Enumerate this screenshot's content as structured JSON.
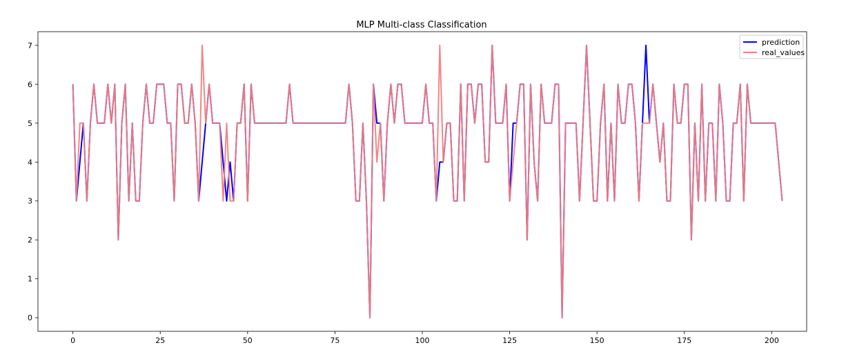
{
  "chart_data": {
    "type": "line",
    "title": "MLP Multi-class Classification",
    "xlabel": "",
    "ylabel": "",
    "xlim": [
      -10,
      210
    ],
    "ylim": [
      -0.35,
      7.35
    ],
    "xticks": [
      0,
      25,
      50,
      75,
      100,
      125,
      150,
      175,
      200
    ],
    "yticks": [
      0,
      1,
      2,
      3,
      4,
      5,
      6,
      7
    ],
    "grid": false,
    "legend": "top-right",
    "x_start": 0,
    "series": [
      {
        "name": "prediction",
        "color": "#0000ff",
        "values": [
          6,
          3,
          4,
          5,
          3,
          5,
          6,
          5,
          5,
          5,
          6,
          5,
          6,
          2,
          5,
          6,
          3,
          5,
          3,
          3,
          5,
          6,
          5,
          5,
          6,
          6,
          6,
          5,
          5,
          3,
          6,
          6,
          5,
          5,
          6,
          5,
          3,
          4,
          5,
          6,
          5,
          5,
          5,
          4,
          3,
          4,
          3,
          5,
          5,
          6,
          3,
          6,
          5,
          5,
          5,
          5,
          5,
          5,
          5,
          5,
          5,
          5,
          6,
          5,
          5,
          5,
          5,
          5,
          5,
          5,
          5,
          5,
          5,
          5,
          5,
          5,
          5,
          5,
          5,
          6,
          5,
          3,
          3,
          5,
          3,
          0,
          6,
          5,
          5,
          3,
          5,
          6,
          5,
          6,
          6,
          5,
          5,
          5,
          5,
          5,
          5,
          6,
          5,
          5,
          3,
          4,
          4,
          5,
          5,
          3,
          3,
          6,
          3,
          6,
          6,
          5,
          6,
          6,
          4,
          4,
          7,
          5,
          5,
          5,
          6,
          3,
          5,
          5,
          6,
          6,
          2,
          6,
          4,
          3,
          6,
          5,
          5,
          5,
          6,
          6,
          0,
          5,
          5,
          5,
          5,
          3,
          5,
          7,
          5,
          3,
          3,
          5,
          6,
          3,
          5,
          3,
          6,
          5,
          5,
          6,
          6,
          5,
          3,
          5,
          7,
          5,
          6,
          5,
          4,
          5,
          3,
          3,
          6,
          5,
          5,
          6,
          6,
          2,
          5,
          3,
          6,
          3,
          5,
          5,
          3,
          6,
          5,
          3,
          3,
          5,
          5,
          6,
          3,
          6,
          5,
          5,
          5,
          5,
          5,
          5,
          5,
          5,
          4,
          3
        ]
      },
      {
        "name": "real_values",
        "color": "#f08080",
        "values": [
          6,
          3,
          5,
          5,
          3,
          5,
          6,
          5,
          5,
          5,
          6,
          5,
          6,
          2,
          5,
          6,
          3,
          5,
          3,
          3,
          5,
          6,
          5,
          5,
          6,
          6,
          6,
          5,
          5,
          3,
          6,
          6,
          5,
          5,
          6,
          5,
          3,
          7,
          5,
          6,
          5,
          5,
          5,
          3,
          5,
          3,
          3,
          5,
          5,
          6,
          3,
          6,
          5,
          5,
          5,
          5,
          5,
          5,
          5,
          5,
          5,
          5,
          6,
          5,
          5,
          5,
          5,
          5,
          5,
          5,
          5,
          5,
          5,
          5,
          5,
          5,
          5,
          5,
          5,
          6,
          5,
          3,
          3,
          5,
          3,
          0,
          6,
          4,
          5,
          3,
          5,
          6,
          5,
          6,
          6,
          5,
          5,
          5,
          5,
          5,
          5,
          6,
          5,
          5,
          3,
          7,
          4,
          5,
          5,
          3,
          3,
          6,
          3,
          6,
          6,
          5,
          6,
          6,
          4,
          4,
          7,
          5,
          5,
          5,
          6,
          3,
          4,
          5,
          6,
          6,
          2,
          6,
          4,
          3,
          6,
          5,
          5,
          5,
          6,
          6,
          0,
          5,
          5,
          5,
          5,
          3,
          5,
          7,
          5,
          3,
          3,
          5,
          6,
          3,
          5,
          3,
          6,
          5,
          5,
          6,
          6,
          5,
          3,
          5,
          5,
          5,
          6,
          5,
          4,
          5,
          3,
          3,
          6,
          5,
          5,
          6,
          6,
          2,
          5,
          3,
          6,
          3,
          5,
          5,
          3,
          6,
          5,
          3,
          3,
          5,
          5,
          6,
          3,
          6,
          5,
          5,
          5,
          5,
          5,
          5,
          5,
          5,
          4,
          3
        ]
      }
    ]
  }
}
